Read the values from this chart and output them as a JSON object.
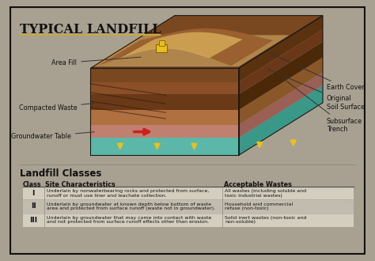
{
  "title": "Typical Landfill",
  "bg_color": "#ede8dc",
  "outer_bg": "#a8a090",
  "title_color": "#111111",
  "underline_color": "#c8a840",
  "diagram_labels_left": [
    "Area Fill",
    "Compacted Waste",
    "Groundwater Table"
  ],
  "diagram_labels_right": [
    "Earth Cover",
    "Original\nSoil Surface",
    "Subsurface\nTrench"
  ],
  "section_title": "Landfill Classes",
  "table_headers": [
    "Class",
    "Site Characteristics",
    "Acceptable Wastes"
  ],
  "classes": [
    "I",
    "II",
    "III"
  ],
  "site_chars": [
    "Underlain by nonwaterbearing rocks and protected from surface,\nrunoff or must use liner and leachate collection.",
    "Underlain by groundwater at known depth below bottom of waste\narea and protected from surface runoff (waste not in groundwater).",
    "Underlain by groundwater that may come into contact with waste\nand not protected from surface runoff effects other than erosion."
  ],
  "acceptable": [
    "All wastes (including soluble and\ntoxic industrial wastes)",
    "Household and commercial\nrefuse (non-toxic)",
    "Solid inert wastes (non-toxic and\nnon-soluble)"
  ],
  "row_bg": [
    "#f2ede0",
    "#d5d0c5",
    "#f2ede0"
  ],
  "layers": {
    "teal": "#5bb8a8",
    "pink_brown": "#c08070",
    "med_brown": "#b07040",
    "dark_brown": "#6a3a18",
    "rich_brown": "#8c5028",
    "top_brown": "#7a4820",
    "sandy": "#c8a060",
    "yellow_arrow": "#e8c020",
    "red_arrow": "#cc2020"
  }
}
